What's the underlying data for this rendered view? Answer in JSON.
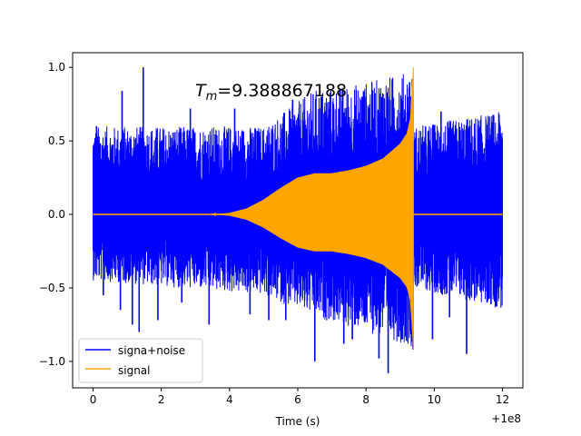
{
  "chart_data": {
    "type": "line",
    "xlabel": "Time (s)",
    "ylabel": "",
    "xlim": [
      -0.6,
      12.6
    ],
    "ylim": [
      -1.18,
      1.1
    ],
    "x_offset_label": "+1e8",
    "xticks": [
      0,
      2,
      4,
      6,
      8,
      10,
      12
    ],
    "xtick_labels": [
      "0",
      "2",
      "4",
      "6",
      "8",
      "10",
      "12"
    ],
    "yticks": [
      1.0,
      0.5,
      0.0,
      -0.5,
      -1.0
    ],
    "ytick_labels": [
      "1.0",
      "0.5",
      "0.0",
      "−0.5",
      "−1.0"
    ],
    "annotation": {
      "symbol": "T",
      "subscript": "m",
      "text": "=9.388867188",
      "x": 3.0,
      "y": 0.8
    },
    "legend_position": "lower-left",
    "series": [
      {
        "name": "signa+noise",
        "color": "#0000ff",
        "x_range": [
          0,
          12
        ],
        "noise_envelope": {
          "x": [
            0,
            5,
            6.5,
            8,
            9.38,
            9.4,
            12
          ],
          "upper": [
            0.6,
            0.6,
            0.85,
            0.9,
            0.98,
            0.6,
            0.7
          ],
          "lower": [
            -0.45,
            -0.55,
            -0.7,
            -0.8,
            -0.9,
            -0.5,
            -0.65
          ]
        },
        "spikes": [
          {
            "x": 0.1,
            "y": 0.6
          },
          {
            "x": 0.3,
            "y": -0.55
          },
          {
            "x": 0.8,
            "y": -0.65
          },
          {
            "x": 0.85,
            "y": 0.84
          },
          {
            "x": 1.15,
            "y": -0.75
          },
          {
            "x": 1.35,
            "y": -0.8
          },
          {
            "x": 1.47,
            "y": 1.0
          },
          {
            "x": 1.9,
            "y": -0.72
          },
          {
            "x": 2.6,
            "y": -0.6
          },
          {
            "x": 2.85,
            "y": 0.72
          },
          {
            "x": 3.4,
            "y": -0.75
          },
          {
            "x": 4.15,
            "y": 0.72
          },
          {
            "x": 4.6,
            "y": -0.68
          },
          {
            "x": 5.15,
            "y": -0.72
          },
          {
            "x": 5.85,
            "y": 0.78
          },
          {
            "x": 5.65,
            "y": -0.72
          },
          {
            "x": 6.5,
            "y": -1.0
          },
          {
            "x": 7.05,
            "y": 0.73
          },
          {
            "x": 7.35,
            "y": -0.88
          },
          {
            "x": 7.6,
            "y": -0.85
          },
          {
            "x": 8.0,
            "y": 0.8
          },
          {
            "x": 8.38,
            "y": -0.98
          },
          {
            "x": 8.65,
            "y": -1.08
          },
          {
            "x": 8.5,
            "y": 0.82
          },
          {
            "x": 9.05,
            "y": -0.85
          },
          {
            "x": 9.28,
            "y": 0.9
          },
          {
            "x": 9.38,
            "y": -0.92
          },
          {
            "x": 9.95,
            "y": -0.85
          },
          {
            "x": 10.2,
            "y": 0.7
          },
          {
            "x": 10.45,
            "y": -0.7
          },
          {
            "x": 10.95,
            "y": -0.95
          },
          {
            "x": 11.05,
            "y": 0.6
          },
          {
            "x": 11.55,
            "y": -0.6
          },
          {
            "x": 11.9,
            "y": 0.68
          }
        ]
      },
      {
        "name": "signal",
        "color": "#ffa500",
        "x_range": [
          0,
          12
        ],
        "chirp_end": 9.388867188,
        "amplitude_envelope": {
          "x": [
            0,
            3.5,
            4.0,
            4.5,
            5.0,
            5.5,
            6.0,
            6.5,
            7.0,
            7.5,
            8.0,
            8.5,
            9.0,
            9.2,
            9.3,
            9.388867188
          ],
          "y": [
            0,
            0,
            0.01,
            0.04,
            0.1,
            0.18,
            0.25,
            0.28,
            0.28,
            0.3,
            0.33,
            0.38,
            0.48,
            0.55,
            0.65,
            1.0
          ]
        },
        "lower_envelope_scale": 0.9
      }
    ]
  }
}
